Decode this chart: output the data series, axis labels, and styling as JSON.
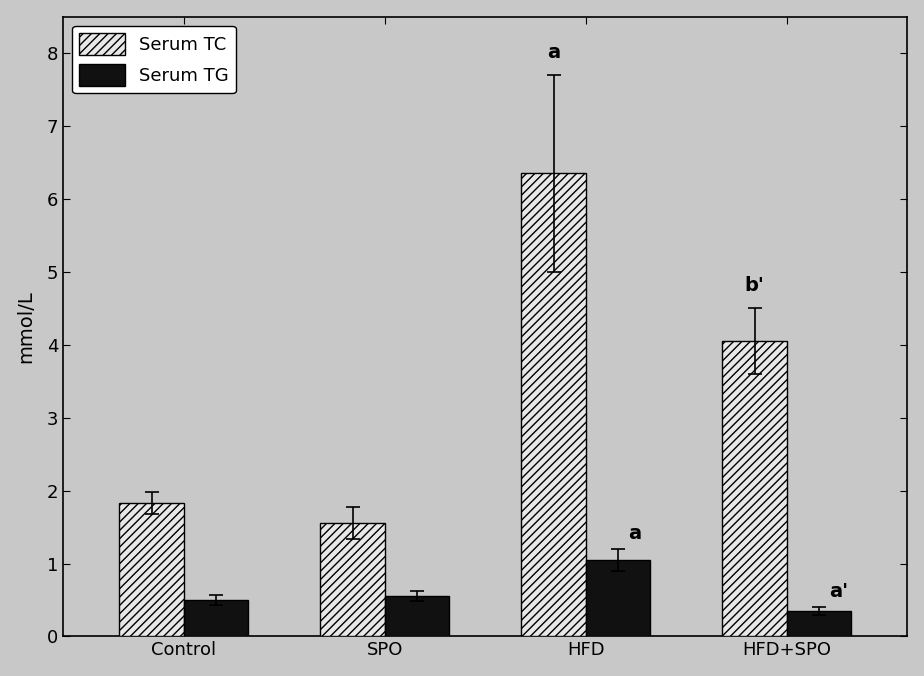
{
  "categories": [
    "Control",
    "SPO",
    "HFD",
    "HFD+SPO"
  ],
  "tc_values": [
    1.83,
    1.55,
    6.35,
    4.05
  ],
  "tg_values": [
    0.5,
    0.55,
    1.05,
    0.35
  ],
  "tc_errors": [
    0.15,
    0.22,
    1.35,
    0.45
  ],
  "tg_errors": [
    0.07,
    0.07,
    0.15,
    0.05
  ],
  "tc_annotations": [
    "",
    "",
    "a",
    "b'"
  ],
  "tg_annotations": [
    "",
    "",
    "a",
    "a'"
  ],
  "ylabel": "mmol/L",
  "ylim": [
    0,
    8.5
  ],
  "yticks": [
    0,
    1,
    2,
    3,
    4,
    5,
    6,
    7,
    8
  ],
  "legend_tc": "Serum TC",
  "legend_tg": "Serum TG",
  "bar_width": 0.32,
  "background_color": "#c8c8c8",
  "plot_bg_color": "#d0d0d0",
  "bar_color_tc": "#e8e8e8",
  "bar_color_tg": "#111111",
  "hatch_tc": "////",
  "font_size_labels": 14,
  "font_size_ticks": 13,
  "font_size_annot": 14,
  "font_size_legend": 13
}
